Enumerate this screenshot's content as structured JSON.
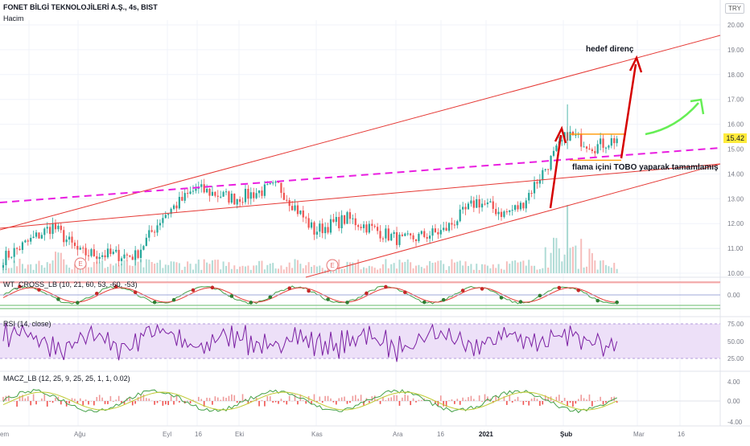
{
  "header": {
    "title": "FONET BİLGİ TEKNOLOJİLERİ A.Ş., 4s, BIST",
    "volume_label": "Hacim",
    "currency": "TRY",
    "last_price": "15.42"
  },
  "annotations": {
    "target": "hedef direnç",
    "pattern": "flama içini TOBO yaparak tamamlamış"
  },
  "earnings_marker": "E",
  "panes": {
    "wt": {
      "label": "WT_CROSS_LB (10, 21, 60, 53, -60, -53)",
      "ticks": [
        "0.00"
      ]
    },
    "rsi": {
      "label": "RSI (14, close)",
      "ticks": [
        "75.00",
        "50.00",
        "25.00"
      ]
    },
    "macz": {
      "label": "MACZ_LB (12, 25, 9, 25, 25, 1, 1, 0.02)",
      "ticks": [
        "4.00",
        "0.00",
        "-4.00"
      ]
    }
  },
  "x_axis": {
    "labels": [
      "em",
      "Ağu",
      "Eyl",
      "16",
      "Eki",
      "Kas",
      "Ara",
      "16",
      "2021",
      "Şub",
      "Mar",
      "16"
    ]
  },
  "colors": {
    "up": "#26a69a",
    "down": "#ef5350",
    "channel": "#e53935",
    "dashed": "#e91ee0",
    "flag": "#ff9800",
    "arrow_red": "#d50000",
    "arrow_green": "#66ee55",
    "rsi": "#7b1fa2",
    "rsi_band": "#ede0f8"
  },
  "chart_data": {
    "type": "candlestick",
    "y_axis_ticks": [
      "20.00",
      "19.00",
      "18.00",
      "17.00",
      "16.00",
      "15.00",
      "14.00",
      "13.00",
      "12.00",
      "11.00",
      "10.00"
    ],
    "ylim": [
      10,
      20.4
    ],
    "x_labels": [
      "em",
      "Ağu",
      "Eyl",
      "16",
      "Eki",
      "Kas",
      "Ara",
      "16",
      "2021",
      "Şub",
      "Mar",
      "16"
    ],
    "last_price": 15.42,
    "price_path": [
      {
        "date": "Temmuz",
        "close": 10.6
      },
      {
        "date": "Ağu",
        "close": 11.9
      },
      {
        "date": "Ağu",
        "close": 10.8
      },
      {
        "date": "Eyl",
        "close": 10.7
      },
      {
        "date": "Eyl",
        "close": 12.3
      },
      {
        "date": "16",
        "close": 13.4
      },
      {
        "date": "Eki",
        "close": 13.0
      },
      {
        "date": "Eki",
        "close": 13.5
      },
      {
        "date": "Kas",
        "close": 11.7
      },
      {
        "date": "Kas",
        "close": 12.2
      },
      {
        "date": "Ara",
        "close": 11.3
      },
      {
        "date": "Ara",
        "close": 11.7
      },
      {
        "date": "16",
        "close": 12.9
      },
      {
        "date": "2021",
        "close": 12.4
      },
      {
        "date": "2021",
        "close": 12.7
      },
      {
        "date": "Şub",
        "close": 15.6
      },
      {
        "date": "Şub",
        "close": 15.1
      },
      {
        "date": "Şub",
        "close": 15.42
      }
    ],
    "flag_high": 15.6,
    "flag_low": 14.55,
    "target": 18.7
  }
}
